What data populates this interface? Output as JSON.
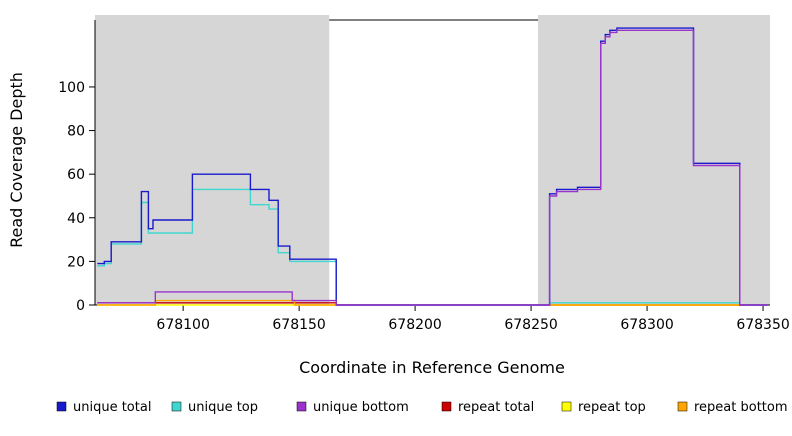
{
  "chart_data": {
    "type": "line",
    "step": true,
    "title": "",
    "xlabel": "Coordinate in Reference Genome",
    "ylabel": "Read Coverage Depth",
    "xlim": [
      678062,
      678353
    ],
    "ylim": [
      0,
      133
    ],
    "grid": false,
    "legend_position": "bottom",
    "xticks": [
      678100,
      678150,
      678200,
      678250,
      678300,
      678350
    ],
    "yticks": [
      0,
      20,
      40,
      60,
      80,
      100
    ],
    "background_color": "#ffffff",
    "shaded_region_color": "#d6d6d6",
    "shaded_regions": [
      {
        "x0": 678062,
        "x1": 678163
      },
      {
        "x0": 678253,
        "x1": 678353
      }
    ],
    "series": [
      {
        "name": "repeat total",
        "color": "#cd0000",
        "points": [
          [
            678063,
            1
          ],
          [
            678166,
            0
          ],
          [
            678352,
            0
          ]
        ]
      },
      {
        "name": "repeat top",
        "color": "#ffff00",
        "points": [
          [
            678063,
            0
          ],
          [
            678352,
            0
          ]
        ]
      },
      {
        "name": "repeat bottom",
        "color": "#ffa500",
        "points": [
          [
            678063,
            0
          ],
          [
            678088,
            2
          ],
          [
            678148,
            0
          ],
          [
            678352,
            0
          ]
        ]
      },
      {
        "name": "unique top",
        "color": "#40d6d0",
        "points": [
          [
            678063,
            18
          ],
          [
            678066,
            19
          ],
          [
            678069,
            28
          ],
          [
            678082,
            47
          ],
          [
            678085,
            33
          ],
          [
            678104,
            53
          ],
          [
            678129,
            46
          ],
          [
            678137,
            44
          ],
          [
            678141,
            24
          ],
          [
            678146,
            20
          ],
          [
            678166,
            0
          ],
          [
            678258,
            1
          ],
          [
            678340,
            0
          ],
          [
            678352,
            0
          ]
        ]
      },
      {
        "name": "unique total",
        "color": "#1a1acd",
        "points": [
          [
            678063,
            19
          ],
          [
            678066,
            20
          ],
          [
            678069,
            29
          ],
          [
            678082,
            52
          ],
          [
            678085,
            35
          ],
          [
            678087,
            39
          ],
          [
            678104,
            60
          ],
          [
            678129,
            53
          ],
          [
            678137,
            48
          ],
          [
            678141,
            27
          ],
          [
            678146,
            21
          ],
          [
            678166,
            0
          ],
          [
            678258,
            51
          ],
          [
            678261,
            53
          ],
          [
            678270,
            54
          ],
          [
            678280,
            121
          ],
          [
            678282,
            124
          ],
          [
            678284,
            126
          ],
          [
            678287,
            127
          ],
          [
            678320,
            65
          ],
          [
            678340,
            0
          ],
          [
            678352,
            0
          ]
        ]
      },
      {
        "name": "unique bottom",
        "color": "#9933cc",
        "points": [
          [
            678063,
            1
          ],
          [
            678088,
            6
          ],
          [
            678147,
            2
          ],
          [
            678166,
            0
          ],
          [
            678258,
            50
          ],
          [
            678261,
            52
          ],
          [
            678270,
            53
          ],
          [
            678280,
            120
          ],
          [
            678282,
            123
          ],
          [
            678284,
            125
          ],
          [
            678287,
            126
          ],
          [
            678320,
            64
          ],
          [
            678340,
            0
          ],
          [
            678352,
            0
          ]
        ]
      }
    ],
    "legend": [
      {
        "label": "unique total",
        "color": "#1a1acd"
      },
      {
        "label": "unique top",
        "color": "#40d6d0"
      },
      {
        "label": "unique bottom",
        "color": "#9933cc"
      },
      {
        "label": "repeat total",
        "color": "#cd0000"
      },
      {
        "label": "repeat top",
        "color": "#ffff00"
      },
      {
        "label": "repeat bottom",
        "color": "#ffa500"
      }
    ]
  }
}
